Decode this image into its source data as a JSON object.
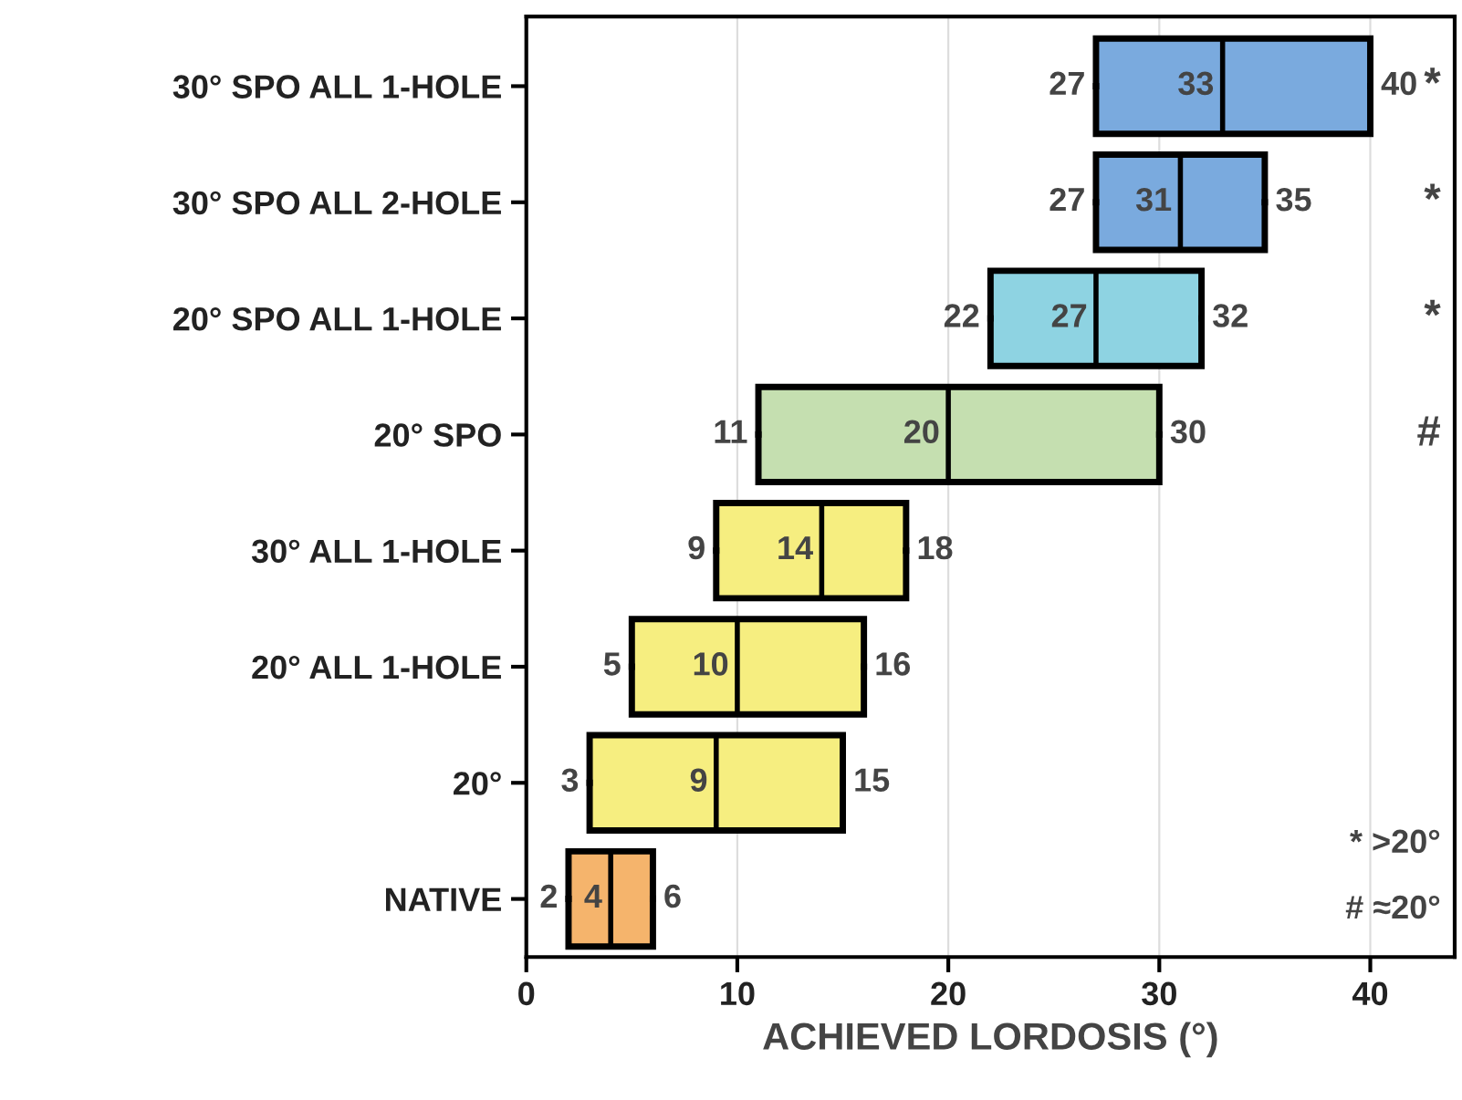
{
  "chart_data": {
    "type": "box",
    "orientation": "horizontal",
    "xlabel": "ACHIEVED LORDOSIS (°)",
    "categories": [
      "30° SPO ALL 1-HOLE",
      "30° SPO ALL 2-HOLE",
      "20° SPO ALL 1-HOLE",
      "20° SPO",
      "30° ALL 1-HOLE",
      "20° ALL 1-HOLE",
      "20°",
      "NATIVE"
    ],
    "boxes": [
      {
        "low": 27,
        "q1": 27,
        "median": 33,
        "q3": 40,
        "high": 40
      },
      {
        "low": 27,
        "q1": 27,
        "median": 31,
        "q3": 35,
        "high": 35
      },
      {
        "low": 22,
        "q1": 22,
        "median": 27,
        "q3": 32,
        "high": 32
      },
      {
        "low": 11,
        "q1": 11,
        "median": 20,
        "q3": 30,
        "high": 30
      },
      {
        "low": 9,
        "q1": 9,
        "median": 14,
        "q3": 18,
        "high": 18
      },
      {
        "low": 5,
        "q1": 5,
        "median": 10,
        "q3": 16,
        "high": 16
      },
      {
        "low": 3,
        "q1": 3,
        "median": 9,
        "q3": 15,
        "high": 15
      },
      {
        "low": 2,
        "q1": 2,
        "median": 4,
        "q3": 6,
        "high": 6
      }
    ],
    "colors": [
      "#7aaade",
      "#7aaade",
      "#8ed3e2",
      "#c5dfb0",
      "#f6ee80",
      "#f6ee80",
      "#f6ee80",
      "#f5b46c"
    ],
    "value_labels": [
      [
        "27",
        "33",
        "40"
      ],
      [
        "27",
        "31",
        "35"
      ],
      [
        "22",
        "27",
        "32"
      ],
      [
        "11",
        "20",
        "30"
      ],
      [
        "9",
        "14",
        "18"
      ],
      [
        "5",
        "10",
        "16"
      ],
      [
        "3",
        "9",
        "15"
      ],
      [
        "2",
        "4",
        "6"
      ]
    ],
    "xlim": [
      0,
      44
    ],
    "xticks": [
      0,
      10,
      20,
      30,
      40
    ],
    "grid": "x",
    "annotations": [
      "*",
      "*",
      "*",
      "#",
      "* >20°",
      "# ≈20°"
    ]
  }
}
